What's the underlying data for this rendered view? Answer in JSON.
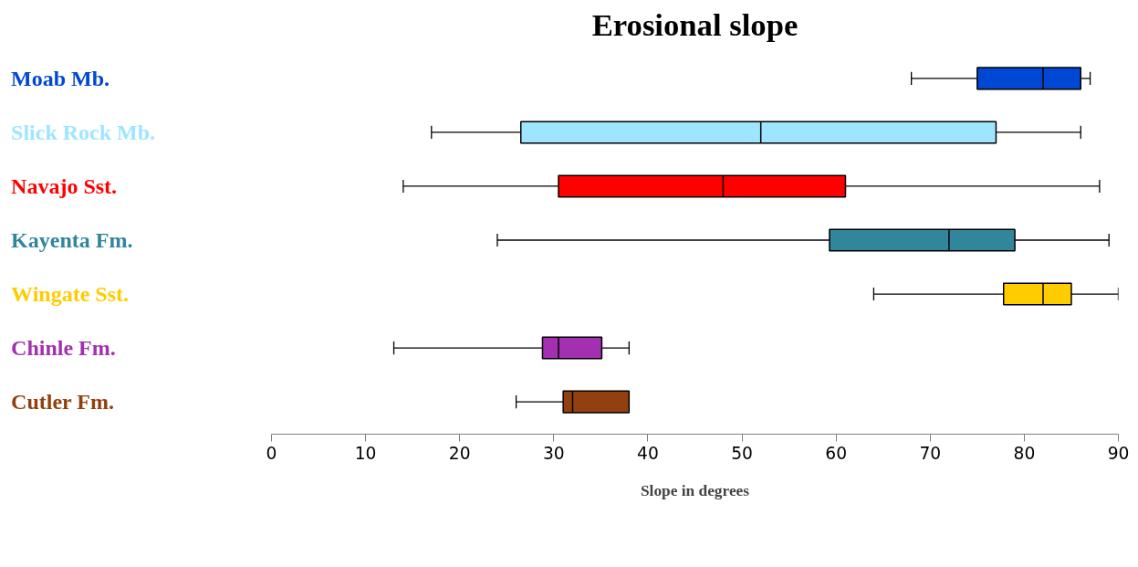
{
  "chart_data": {
    "type": "box",
    "orientation": "horizontal",
    "title": "Erosional slope",
    "xlabel": "Slope in degrees",
    "categories": [
      "Moab Mb.",
      "Slick Rock Mb.",
      "Navajo Sst.",
      "Kayenta Fm.",
      "Wingate Sst.",
      "Chinle Fm.",
      "Cutler Fm."
    ],
    "colors": [
      "#0047d4",
      "#9ee6ff",
      "#ff0000",
      "#31869b",
      "#ffcc00",
      "#a330b0",
      "#934010"
    ],
    "boxes": [
      {
        "low": 68,
        "q1": 75,
        "median": 82,
        "q3": 86,
        "high": 87
      },
      {
        "low": 17,
        "q1": 26.5,
        "median": 52,
        "q3": 77,
        "high": 86
      },
      {
        "low": 14,
        "q1": 30.5,
        "median": 48,
        "q3": 61,
        "high": 88
      },
      {
        "low": 24,
        "q1": 59.3,
        "median": 72,
        "q3": 79,
        "high": 89
      },
      {
        "low": 64,
        "q1": 77.8,
        "median": 82,
        "q3": 85,
        "high": 90
      },
      {
        "low": 13,
        "q1": 28.8,
        "median": 30.5,
        "q3": 35.1,
        "high": 38
      },
      {
        "low": 26,
        "q1": 31,
        "median": 32,
        "q3": 38,
        "high": 38
      }
    ],
    "xlim": [
      0,
      90
    ],
    "xticks": [
      0,
      10,
      20,
      30,
      40,
      50,
      60,
      70,
      80,
      90
    ],
    "grid": false
  }
}
